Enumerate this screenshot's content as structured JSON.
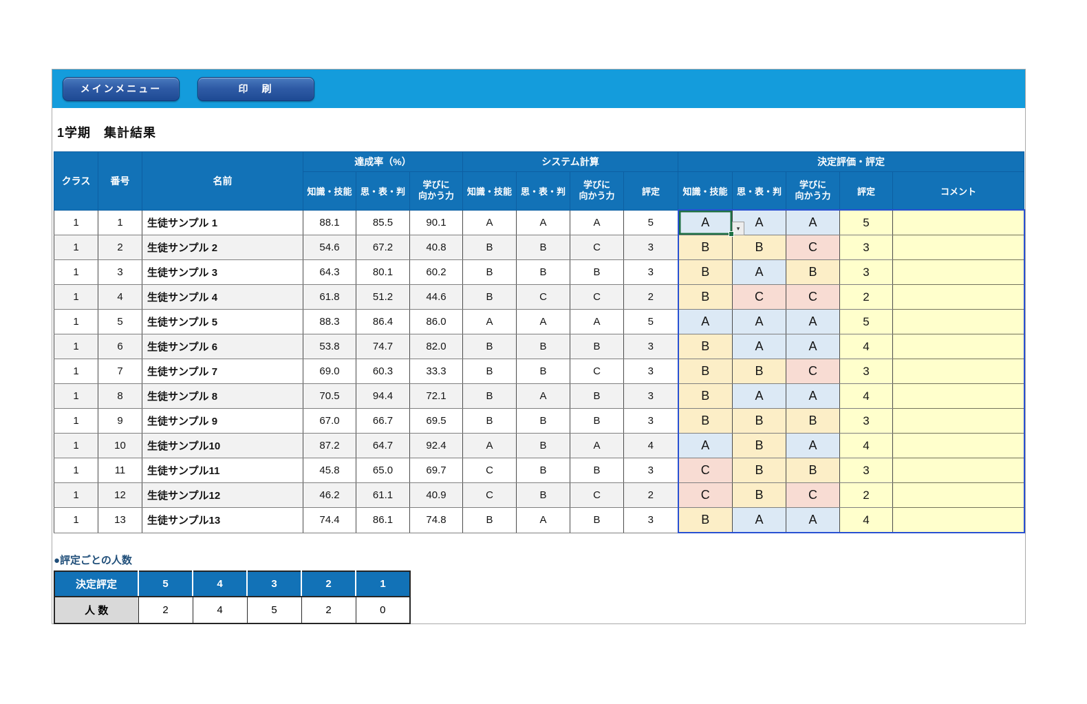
{
  "banner": {
    "main_menu_label": "メインメニュー",
    "print_label": "印　刷"
  },
  "page_title": "1学期　集計結果",
  "table": {
    "columns": {
      "class": "クラス",
      "number": "番号",
      "name": "名前"
    },
    "groups": {
      "achievement": "達成率（%）",
      "system": "システム計算",
      "decision": "決定評価・評定"
    },
    "sub": {
      "knowledge": "知識・技能",
      "thinking": "思・表・判",
      "attitude": "学びに\n向かう力",
      "grade": "評定",
      "comment": "コメント"
    },
    "rows": [
      {
        "cls": "1",
        "no": "1",
        "name": "生徒サンプル 1",
        "ach": [
          "88.1",
          "85.5",
          "90.1"
        ],
        "sys": [
          "A",
          "A",
          "A",
          "5"
        ],
        "dec": [
          "A",
          "A",
          "A",
          "5"
        ],
        "comment": ""
      },
      {
        "cls": "1",
        "no": "2",
        "name": "生徒サンプル 2",
        "ach": [
          "54.6",
          "67.2",
          "40.8"
        ],
        "sys": [
          "B",
          "B",
          "C",
          "3"
        ],
        "dec": [
          "B",
          "B",
          "C",
          "3"
        ],
        "comment": ""
      },
      {
        "cls": "1",
        "no": "3",
        "name": "生徒サンプル 3",
        "ach": [
          "64.3",
          "80.1",
          "60.2"
        ],
        "sys": [
          "B",
          "B",
          "B",
          "3"
        ],
        "dec": [
          "B",
          "A",
          "B",
          "3"
        ],
        "comment": ""
      },
      {
        "cls": "1",
        "no": "4",
        "name": "生徒サンプル 4",
        "ach": [
          "61.8",
          "51.2",
          "44.6"
        ],
        "sys": [
          "B",
          "C",
          "C",
          "2"
        ],
        "dec": [
          "B",
          "C",
          "C",
          "2"
        ],
        "comment": ""
      },
      {
        "cls": "1",
        "no": "5",
        "name": "生徒サンプル 5",
        "ach": [
          "88.3",
          "86.4",
          "86.0"
        ],
        "sys": [
          "A",
          "A",
          "A",
          "5"
        ],
        "dec": [
          "A",
          "A",
          "A",
          "5"
        ],
        "comment": ""
      },
      {
        "cls": "1",
        "no": "6",
        "name": "生徒サンプル 6",
        "ach": [
          "53.8",
          "74.7",
          "82.0"
        ],
        "sys": [
          "B",
          "B",
          "B",
          "3"
        ],
        "dec": [
          "B",
          "A",
          "A",
          "4"
        ],
        "comment": ""
      },
      {
        "cls": "1",
        "no": "7",
        "name": "生徒サンプル 7",
        "ach": [
          "69.0",
          "60.3",
          "33.3"
        ],
        "sys": [
          "B",
          "B",
          "C",
          "3"
        ],
        "dec": [
          "B",
          "B",
          "C",
          "3"
        ],
        "comment": ""
      },
      {
        "cls": "1",
        "no": "8",
        "name": "生徒サンプル 8",
        "ach": [
          "70.5",
          "94.4",
          "72.1"
        ],
        "sys": [
          "B",
          "A",
          "B",
          "3"
        ],
        "dec": [
          "B",
          "A",
          "A",
          "4"
        ],
        "comment": ""
      },
      {
        "cls": "1",
        "no": "9",
        "name": "生徒サンプル 9",
        "ach": [
          "67.0",
          "66.7",
          "69.5"
        ],
        "sys": [
          "B",
          "B",
          "B",
          "3"
        ],
        "dec": [
          "B",
          "B",
          "B",
          "3"
        ],
        "comment": ""
      },
      {
        "cls": "1",
        "no": "10",
        "name": "生徒サンプル10",
        "ach": [
          "87.2",
          "64.7",
          "92.4"
        ],
        "sys": [
          "A",
          "B",
          "A",
          "4"
        ],
        "dec": [
          "A",
          "B",
          "A",
          "4"
        ],
        "comment": ""
      },
      {
        "cls": "1",
        "no": "11",
        "name": "生徒サンプル11",
        "ach": [
          "45.8",
          "65.0",
          "69.7"
        ],
        "sys": [
          "C",
          "B",
          "B",
          "3"
        ],
        "dec": [
          "C",
          "B",
          "B",
          "3"
        ],
        "comment": ""
      },
      {
        "cls": "1",
        "no": "12",
        "name": "生徒サンプル12",
        "ach": [
          "46.2",
          "61.1",
          "40.9"
        ],
        "sys": [
          "C",
          "B",
          "C",
          "2"
        ],
        "dec": [
          "C",
          "B",
          "C",
          "2"
        ],
        "comment": ""
      },
      {
        "cls": "1",
        "no": "13",
        "name": "生徒サンプル13",
        "ach": [
          "74.4",
          "86.1",
          "74.8"
        ],
        "sys": [
          "B",
          "A",
          "B",
          "3"
        ],
        "dec": [
          "B",
          "A",
          "A",
          "4"
        ],
        "comment": ""
      }
    ]
  },
  "summary": {
    "title": "●評定ごとの人数",
    "header_label": "決定評定",
    "grade_labels": [
      "5",
      "4",
      "3",
      "2",
      "1"
    ],
    "count_label": "人 数",
    "counts": [
      "2",
      "4",
      "5",
      "2",
      "0"
    ]
  },
  "icons": {
    "dropdown_arrow": "▾"
  },
  "colors": {
    "banner_blue": "#149CDC",
    "button_blue": "#2F5BA6",
    "header_blue": "#1272B7",
    "alt_row_gray": "#F2F2F2",
    "grade_a_fill": "#DCE9F5",
    "grade_b_fill": "#FCEEC7",
    "grade_c_fill": "#F8DCD3",
    "pale_yellow_fill": "#FFFFCC",
    "summary_label_gray": "#D9D9D9",
    "selection_green": "#1E7044",
    "decision_block_border": "#2850D2"
  }
}
